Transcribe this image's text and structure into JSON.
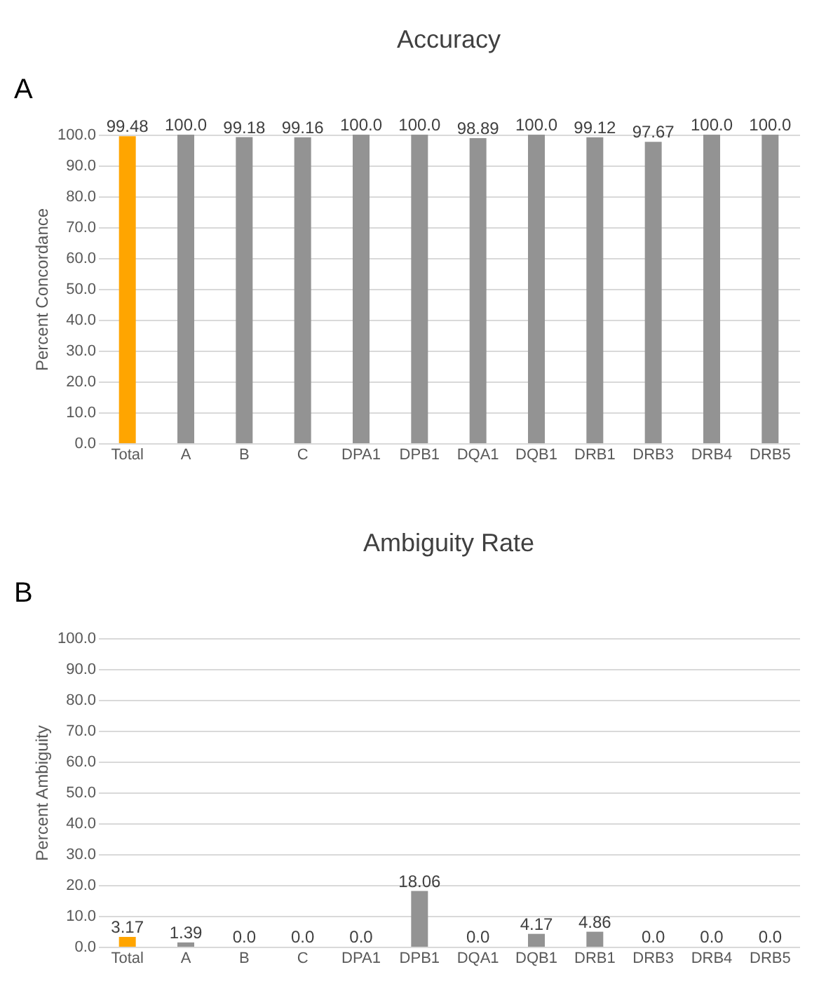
{
  "chart_data": [
    {
      "type": "bar",
      "title": "Accuracy",
      "ylabel": "Percent Concordance",
      "annotations": [
        "A"
      ],
      "categories": [
        "Total",
        "A",
        "B",
        "C",
        "DPA1",
        "DPB1",
        "DQA1",
        "DQB1",
        "DRB1",
        "DRB3",
        "DRB4",
        "DRB5"
      ],
      "values": [
        99.48,
        100,
        99.18,
        99.16,
        100,
        100,
        98.89,
        100,
        99.12,
        97.67,
        100,
        100
      ],
      "value_labels": [
        "99.48",
        "100.0",
        "99.18",
        "99.16",
        "100.0",
        "100.0",
        "98.89",
        "100.0",
        "99.12",
        "97.67",
        "100.0",
        "100.0"
      ],
      "colors": [
        "#ffa500",
        "#939393",
        "#939393",
        "#939393",
        "#939393",
        "#939393",
        "#939393",
        "#939393",
        "#939393",
        "#939393",
        "#939393",
        "#939393"
      ],
      "ylim": [
        0,
        100
      ],
      "yticks": [
        {
          "value": 0,
          "label": "0.0"
        },
        {
          "value": 10,
          "label": "10.0"
        },
        {
          "value": 20,
          "label": "20.0"
        },
        {
          "value": 30,
          "label": "30.0"
        },
        {
          "value": 40,
          "label": "40.0"
        },
        {
          "value": 50,
          "label": "50.0"
        },
        {
          "value": 60,
          "label": "60.0"
        },
        {
          "value": 70,
          "label": "70.0"
        },
        {
          "value": 80,
          "label": "80.0"
        },
        {
          "value": 90,
          "label": "90.0"
        },
        {
          "value": 100,
          "label": "100.0"
        }
      ],
      "grid": "y"
    },
    {
      "type": "bar",
      "title": "Ambiguity Rate",
      "ylabel": "Percent Ambiguity",
      "annotations": [
        "B"
      ],
      "categories": [
        "Total",
        "A",
        "B",
        "C",
        "DPA1",
        "DPB1",
        "DQA1",
        "DQB1",
        "DRB1",
        "DRB3",
        "DRB4",
        "DRB5"
      ],
      "values": [
        3.17,
        1.39,
        0,
        0,
        0,
        18.06,
        0,
        4.17,
        4.86,
        0,
        0,
        0
      ],
      "value_labels": [
        "3.17",
        "1.39",
        "0.0",
        "0.0",
        "0.0",
        "18.06",
        "0.0",
        "4.17",
        "4.86",
        "0.0",
        "0.0",
        "0.0"
      ],
      "colors": [
        "#ffa500",
        "#939393",
        "#939393",
        "#939393",
        "#939393",
        "#939393",
        "#939393",
        "#939393",
        "#939393",
        "#939393",
        "#939393",
        "#939393"
      ],
      "ylim": [
        0,
        100
      ],
      "yticks": [
        {
          "value": 0,
          "label": "0.0"
        },
        {
          "value": 10,
          "label": "10.0"
        },
        {
          "value": 20,
          "label": "20.0"
        },
        {
          "value": 30,
          "label": "30.0"
        },
        {
          "value": 40,
          "label": "40.0"
        },
        {
          "value": 50,
          "label": "50.0"
        },
        {
          "value": 60,
          "label": "60.0"
        },
        {
          "value": 70,
          "label": "70.0"
        },
        {
          "value": 80,
          "label": "80.0"
        },
        {
          "value": 90,
          "label": "90.0"
        },
        {
          "value": 100,
          "label": "100.0"
        }
      ],
      "grid": "y"
    }
  ]
}
